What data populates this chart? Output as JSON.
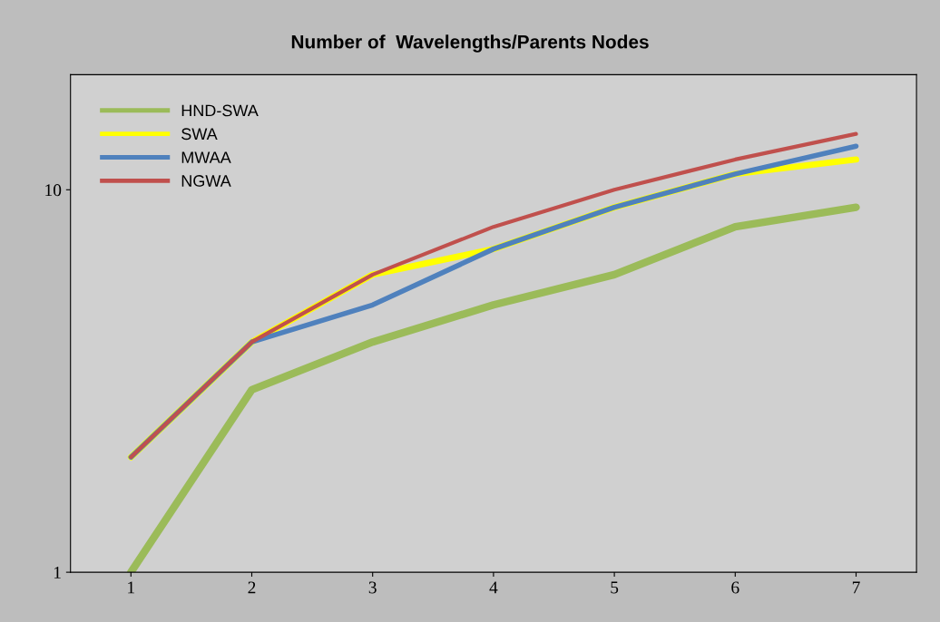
{
  "chart_data": {
    "type": "line",
    "title": "Number of  Wavelengths/Parents Nodes",
    "categories": [
      "1",
      "2",
      "3",
      "4",
      "5",
      "6",
      "7"
    ],
    "series": [
      {
        "name": "HND-SWA",
        "color": "#9bbb59",
        "values": [
          1,
          3,
          4,
          5,
          6,
          8,
          9
        ]
      },
      {
        "name": "SWA",
        "color": "#ffff00",
        "values": [
          2,
          4,
          6,
          7,
          9,
          11,
          12
        ]
      },
      {
        "name": "MWAA",
        "color": "#4f81bd",
        "values": [
          2,
          4,
          5,
          7,
          9,
          11,
          13
        ]
      },
      {
        "name": "NGWA",
        "color": "#c0504d",
        "values": [
          2,
          4,
          6,
          8,
          10,
          12,
          14
        ]
      }
    ],
    "log": true,
    "ylim": [
      1,
      20
    ],
    "yticks": [
      1,
      10
    ],
    "grid": false,
    "legend": "top left",
    "marker": "none",
    "line_style": "solid"
  }
}
